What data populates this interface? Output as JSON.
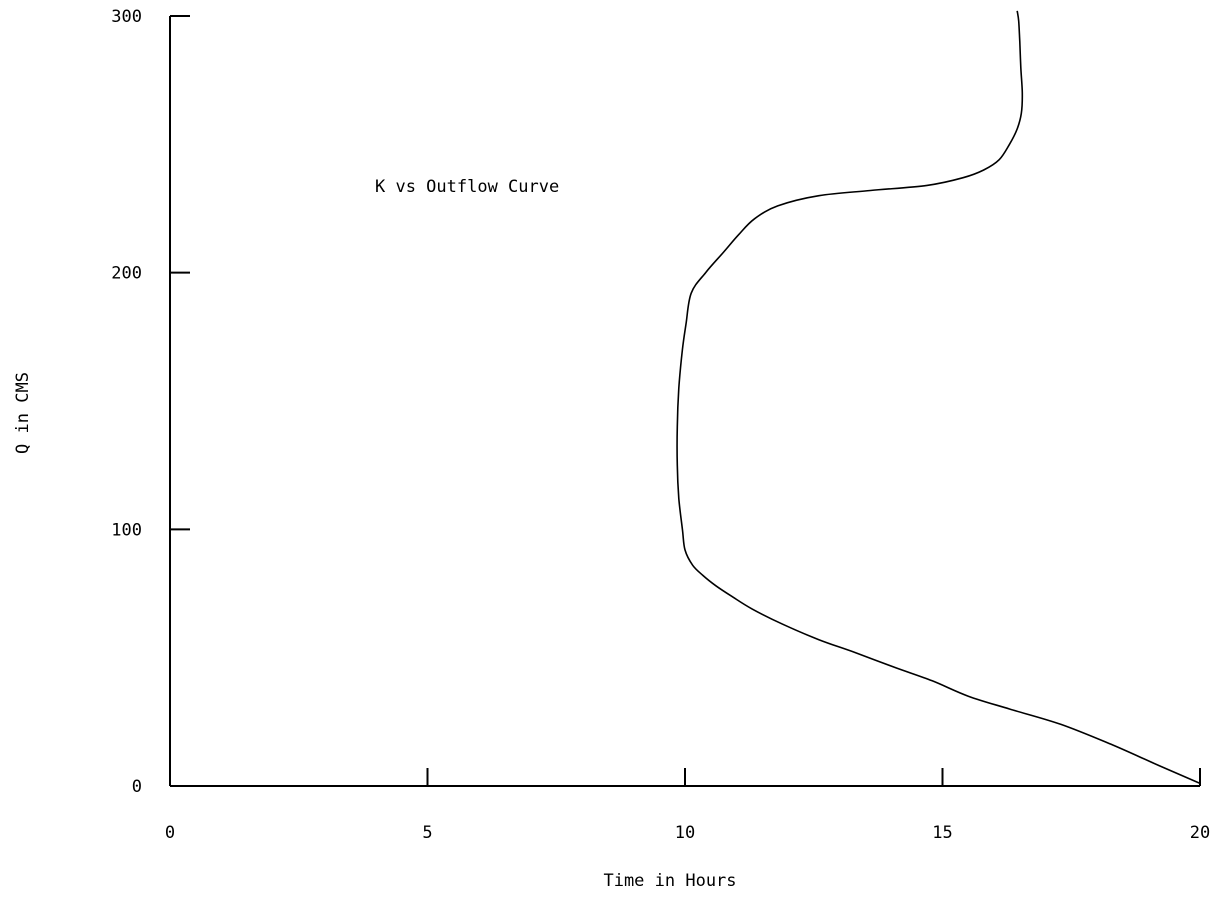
{
  "chart_data": {
    "type": "line",
    "title": "K vs Outflow Curve",
    "xlabel": "Time in Hours",
    "ylabel": "Q in CMS",
    "xlim": [
      0,
      20
    ],
    "ylim": [
      0,
      300
    ],
    "xticks": [
      0,
      5,
      10,
      15,
      20
    ],
    "yticks": [
      0,
      100,
      200,
      300
    ],
    "grid": false,
    "legend": "none",
    "line_color": "#000000",
    "series": [
      {
        "x": [
          20.0,
          19.2,
          18.3,
          17.3,
          16.3,
          15.5,
          14.8,
          14.1,
          13.3,
          12.6,
          11.9,
          11.3,
          10.9,
          10.6,
          10.35,
          10.15,
          10.0,
          9.95,
          9.88,
          9.85,
          9.85,
          9.88,
          9.95,
          10.02,
          10.12,
          10.4,
          10.75,
          11.05,
          11.35,
          11.8,
          12.6,
          13.6,
          14.7,
          15.4,
          15.8,
          16.1,
          16.3,
          16.45,
          16.53,
          16.55,
          16.52,
          16.5,
          16.48,
          16.45
        ],
        "y": [
          1,
          8,
          16,
          24,
          30,
          35,
          41,
          46,
          52,
          57,
          63,
          69,
          74,
          78,
          82,
          86,
          92,
          100,
          112,
          125,
          140,
          155,
          170,
          180,
          192,
          200,
          208,
          215,
          221,
          226,
          230,
          232,
          234,
          237,
          240,
          244,
          250,
          256,
          262,
          270,
          280,
          290,
          298,
          302
        ]
      }
    ]
  }
}
